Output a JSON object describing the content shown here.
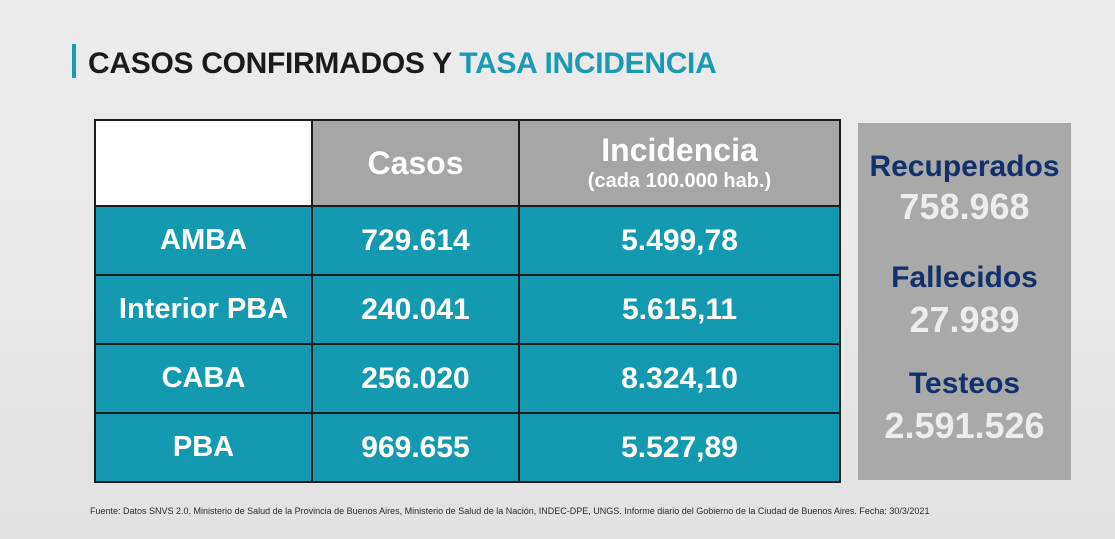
{
  "title": {
    "part1": "CASOS CONFIRMADOS Y",
    "part2": "TASA INCIDENCIA"
  },
  "table": {
    "header": {
      "casos": "Casos",
      "incidencia": "Incidencia",
      "incidencia_sub": "(cada 100.000 hab.)"
    },
    "rows": [
      {
        "region": "AMBA",
        "casos": "729.614",
        "incidencia": "5.499,78"
      },
      {
        "region": "Interior PBA",
        "casos": "240.041",
        "incidencia": "5.615,11"
      },
      {
        "region": "CABA",
        "casos": "256.020",
        "incidencia": "8.324,10"
      },
      {
        "region": "PBA",
        "casos": "969.655",
        "incidencia": "5.527,89"
      }
    ]
  },
  "stats": {
    "recuperados_label": "Recuperados",
    "recuperados_value": "758.968",
    "fallecidos_label": "Fallecidos",
    "fallecidos_value": "27.989",
    "testeos_label": "Testeos",
    "testeos_value": "2.591.526"
  },
  "footer": "Fuente: Datos SNVS 2.0. Ministerio de Salud de la Provincia de Buenos Aires, Ministerio de Salud de la Nación, INDEC-DPE, UNGS. Informe diario del Gobierno de la Ciudad de Buenos Aires. Fecha: 30/3/2021",
  "colors": {
    "accent": "#1a9bb3",
    "table_cell": "#139ab0",
    "header_gray": "#a6a6a6",
    "stat_label": "#14306b"
  }
}
